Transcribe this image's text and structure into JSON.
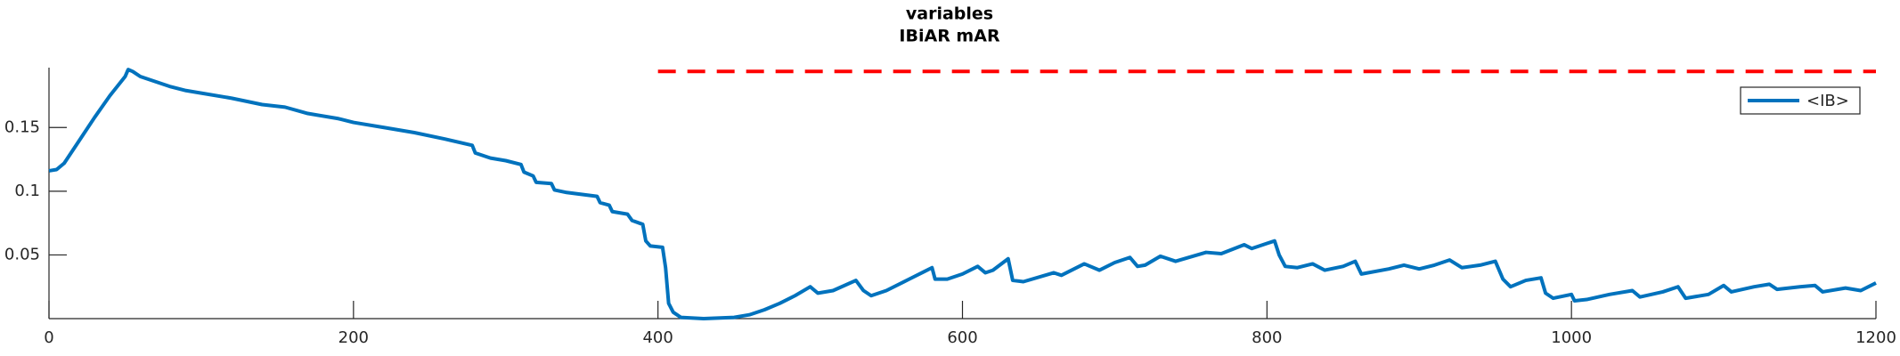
{
  "chart_data": {
    "type": "line",
    "title": [
      "variables",
      "IBiAR mAR"
    ],
    "xlim": [
      0,
      1200
    ],
    "xticks": [
      0,
      200,
      400,
      600,
      800,
      1000,
      1200
    ],
    "ylim": [
      0,
      0.197
    ],
    "yticks": [
      0.05,
      0.1,
      0.15
    ],
    "legend": "upper right",
    "series": [
      {
        "name": "<IB>",
        "color": "#0072bd",
        "x": [
          0,
          5,
          10,
          20,
          30,
          40,
          50,
          52,
          55,
          60,
          70,
          80,
          90,
          100,
          120,
          140,
          155,
          170,
          190,
          200,
          220,
          240,
          260,
          278,
          280,
          290,
          300,
          310,
          312,
          318,
          320,
          330,
          332,
          340,
          360,
          362,
          368,
          370,
          380,
          383,
          390,
          392,
          395,
          403,
          405,
          407,
          410,
          415,
          430,
          450,
          460,
          470,
          480,
          490,
          500,
          505,
          515,
          530,
          535,
          540,
          550,
          565,
          575,
          580,
          582,
          590,
          600,
          610,
          615,
          620,
          630,
          633,
          640,
          660,
          665,
          680,
          690,
          700,
          710,
          715,
          720,
          730,
          740,
          760,
          770,
          785,
          790,
          800,
          805,
          808,
          812,
          820,
          830,
          838,
          850,
          858,
          862,
          880,
          890,
          900,
          910,
          920,
          928,
          940,
          950,
          955,
          960,
          970,
          980,
          983,
          988,
          1000,
          1002,
          1010,
          1025,
          1040,
          1045,
          1060,
          1070,
          1075,
          1090,
          1100,
          1105,
          1120,
          1130,
          1135,
          1150,
          1160,
          1165,
          1180,
          1190,
          1200
        ],
        "values": [
          0.116,
          0.117,
          0.122,
          0.14,
          0.158,
          0.175,
          0.19,
          0.1955,
          0.194,
          0.19,
          0.186,
          0.182,
          0.179,
          0.177,
          0.173,
          0.168,
          0.166,
          0.161,
          0.157,
          0.154,
          0.15,
          0.146,
          0.141,
          0.136,
          0.13,
          0.126,
          0.124,
          0.121,
          0.115,
          0.112,
          0.107,
          0.106,
          0.101,
          0.099,
          0.096,
          0.091,
          0.089,
          0.084,
          0.082,
          0.077,
          0.074,
          0.061,
          0.057,
          0.056,
          0.04,
          0.012,
          0.005,
          0.001,
          0.0,
          0.001,
          0.003,
          0.007,
          0.012,
          0.018,
          0.025,
          0.02,
          0.022,
          0.03,
          0.022,
          0.018,
          0.022,
          0.031,
          0.037,
          0.04,
          0.031,
          0.031,
          0.035,
          0.041,
          0.036,
          0.038,
          0.047,
          0.03,
          0.029,
          0.036,
          0.034,
          0.043,
          0.038,
          0.044,
          0.048,
          0.041,
          0.042,
          0.049,
          0.045,
          0.052,
          0.051,
          0.058,
          0.055,
          0.059,
          0.061,
          0.05,
          0.041,
          0.04,
          0.043,
          0.038,
          0.041,
          0.045,
          0.035,
          0.039,
          0.042,
          0.039,
          0.042,
          0.046,
          0.04,
          0.042,
          0.045,
          0.031,
          0.025,
          0.03,
          0.032,
          0.02,
          0.016,
          0.019,
          0.014,
          0.015,
          0.019,
          0.022,
          0.017,
          0.021,
          0.025,
          0.016,
          0.019,
          0.026,
          0.021,
          0.025,
          0.027,
          0.023,
          0.025,
          0.026,
          0.021,
          0.024,
          0.022,
          0.028
        ]
      }
    ],
    "reference": {
      "x": [
        400,
        1200
      ],
      "values": [
        0.194,
        0.194
      ],
      "color": "#ff0000",
      "style": "dashed"
    }
  }
}
